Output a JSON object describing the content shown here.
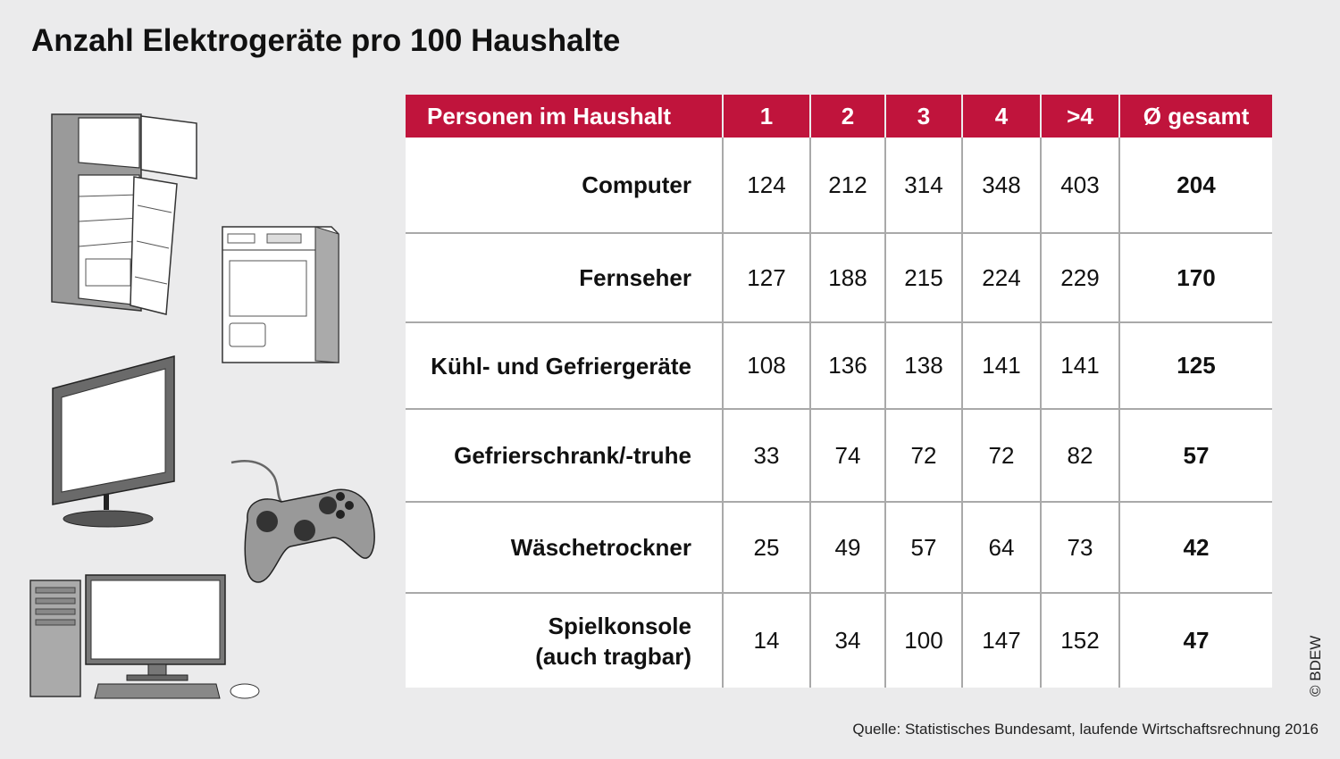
{
  "title": "Anzahl Elektrogeräte pro 100 Haushalte",
  "table": {
    "header_label": "Personen im Haushalt",
    "columns": [
      "1",
      "2",
      "3",
      "4",
      ">4",
      "Ø gesamt"
    ],
    "rows": [
      {
        "label": "Computer",
        "values": [
          "124",
          "212",
          "314",
          "348",
          "403",
          "204"
        ]
      },
      {
        "label": "Fernseher",
        "values": [
          "127",
          "188",
          "215",
          "224",
          "229",
          "170"
        ]
      },
      {
        "label": "Kühl- und Gefriergeräte",
        "values": [
          "108",
          "136",
          "138",
          "141",
          "141",
          "125"
        ]
      },
      {
        "label": "Gefrierschrank/-truhe",
        "values": [
          "33",
          "74",
          "72",
          "72",
          "82",
          "57"
        ]
      },
      {
        "label": "Wäschetrockner",
        "values": [
          "25",
          "49",
          "57",
          "64",
          "73",
          "42"
        ]
      },
      {
        "label": "Spielkonsole\n(auch tragbar)",
        "values": [
          "14",
          "34",
          "100",
          "147",
          "152",
          "47"
        ]
      }
    ]
  },
  "source": "Quelle: Statistisches Bundesamt, laufende Wirtschaftsrechnung 2016",
  "copyright": "© BDEW",
  "colors": {
    "header_bg": "#c0143c",
    "background": "#ebebec",
    "cell_bg": "#ffffff",
    "grid": "#a9a9a9"
  },
  "icons": [
    "fridge-icon",
    "dryer-icon",
    "monitor-icon",
    "gamepad-icon",
    "desktop-computer-icon"
  ],
  "chart_data": {
    "type": "table",
    "title": "Anzahl Elektrogeräte pro 100 Haushalte",
    "xlabel": "Personen im Haushalt",
    "categories": [
      "1",
      "2",
      "3",
      "4",
      ">4",
      "Ø gesamt"
    ],
    "series": [
      {
        "name": "Computer",
        "values": [
          124,
          212,
          314,
          348,
          403,
          204
        ]
      },
      {
        "name": "Fernseher",
        "values": [
          127,
          188,
          215,
          224,
          229,
          170
        ]
      },
      {
        "name": "Kühl- und Gefriergeräte",
        "values": [
          108,
          136,
          138,
          141,
          141,
          125
        ]
      },
      {
        "name": "Gefrierschrank/-truhe",
        "values": [
          33,
          74,
          72,
          72,
          82,
          57
        ]
      },
      {
        "name": "Wäschetrockner",
        "values": [
          25,
          49,
          57,
          64,
          73,
          42
        ]
      },
      {
        "name": "Spielkonsole (auch tragbar)",
        "values": [
          14,
          34,
          100,
          147,
          152,
          47
        ]
      }
    ]
  }
}
